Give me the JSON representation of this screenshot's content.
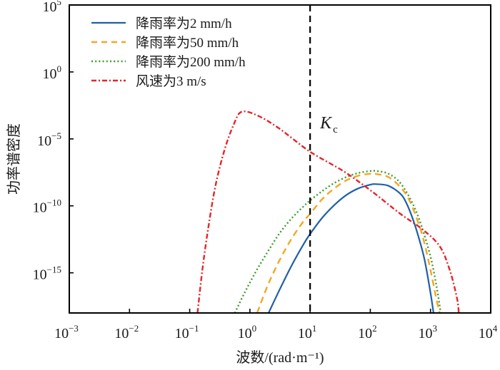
{
  "chart_data": {
    "type": "line",
    "title": "",
    "xlabel": "波数/(rad·m⁻¹)",
    "ylabel": "功率谱密度",
    "xscale": "log",
    "yscale": "log",
    "xlim": [
      0.001,
      10000
    ],
    "ylim": [
      1e-18,
      100000
    ],
    "x_ticks": [
      {
        "base": "10",
        "exp": "−3",
        "value": -3
      },
      {
        "base": "10",
        "exp": "−2",
        "value": -2
      },
      {
        "base": "10",
        "exp": "−1",
        "value": -1
      },
      {
        "base": "10",
        "exp": "0",
        "value": 0
      },
      {
        "base": "10",
        "exp": "1",
        "value": 1
      },
      {
        "base": "10",
        "exp": "2",
        "value": 2
      },
      {
        "base": "10",
        "exp": "3",
        "value": 3
      },
      {
        "base": "10",
        "exp": "4",
        "value": 4
      }
    ],
    "y_ticks": [
      {
        "base": "10",
        "exp": "5",
        "value": 5
      },
      {
        "base": "10",
        "exp": "0",
        "value": 0
      },
      {
        "base": "10",
        "exp": "−5",
        "value": -5
      },
      {
        "base": "10",
        "exp": "−10",
        "value": -10
      },
      {
        "base": "10",
        "exp": "−15",
        "value": -15
      }
    ],
    "grid": false,
    "legend_position": "top-left",
    "vline": {
      "x_log10": 1,
      "label": "K",
      "label_sub": "c",
      "color": "#000000"
    },
    "series": [
      {
        "name": "降雨率为2 mm/h",
        "color": "#1f5fa8",
        "style": "solid",
        "log10_x": [
          0.31,
          0.5,
          0.7,
          0.9,
          1.0,
          1.2,
          1.4,
          1.6,
          1.8,
          2.0,
          2.1,
          2.3,
          2.5,
          2.6,
          2.7,
          2.8,
          2.9,
          3.0,
          3.05
        ],
        "log10_y": [
          -18.0,
          -16.2,
          -14.4,
          -12.8,
          -12.1,
          -10.9,
          -9.95,
          -9.2,
          -8.7,
          -8.42,
          -8.38,
          -8.5,
          -9.1,
          -9.8,
          -10.9,
          -12.3,
          -14.0,
          -16.5,
          -18.0
        ]
      },
      {
        "name": "降雨率为50 mm/h",
        "color": "#f5a623",
        "style": "dashed",
        "log10_x": [
          0.12,
          0.3,
          0.5,
          0.7,
          0.9,
          1.0,
          1.2,
          1.4,
          1.6,
          1.8,
          2.0,
          2.1,
          2.3,
          2.5,
          2.65,
          2.8,
          2.9,
          3.0,
          3.1,
          3.15
        ],
        "log10_y": [
          -18.0,
          -15.9,
          -14.0,
          -12.4,
          -11.1,
          -10.6,
          -9.5,
          -8.7,
          -8.1,
          -7.75,
          -7.6,
          -7.62,
          -7.85,
          -8.6,
          -9.6,
          -11.3,
          -12.8,
          -14.8,
          -17.0,
          -18.0
        ]
      },
      {
        "name": "降雨率为200 mm/h",
        "color": "#3c9a2e",
        "style": "dotted",
        "log10_x": [
          -0.25,
          -0.1,
          0.1,
          0.3,
          0.5,
          0.7,
          0.9,
          1.0,
          1.2,
          1.4,
          1.6,
          1.8,
          2.0,
          2.1,
          2.3,
          2.5,
          2.7,
          2.85,
          3.0,
          3.1,
          3.17
        ],
        "log10_y": [
          -18.0,
          -16.6,
          -14.9,
          -13.4,
          -12.0,
          -10.9,
          -10.0,
          -9.6,
          -8.9,
          -8.3,
          -7.85,
          -7.55,
          -7.4,
          -7.4,
          -7.6,
          -8.3,
          -9.8,
          -11.5,
          -13.8,
          -16.0,
          -18.0
        ]
      },
      {
        "name": "风速为3 m/s",
        "color": "#e3262a",
        "style": "dashdot",
        "log10_x": [
          -0.87,
          -0.79,
          -0.69,
          -0.57,
          -0.42,
          -0.27,
          -0.14,
          0.12,
          0.48,
          1.0,
          1.55,
          2.02,
          2.5,
          2.85,
          3.15,
          3.32,
          3.44,
          3.47
        ],
        "log10_y": [
          -18.0,
          -14.8,
          -11.6,
          -8.46,
          -5.8,
          -3.94,
          -2.98,
          -3.24,
          -4.2,
          -5.96,
          -7.4,
          -8.9,
          -10.6,
          -11.7,
          -13.0,
          -14.8,
          -16.9,
          -18.0
        ]
      }
    ]
  }
}
